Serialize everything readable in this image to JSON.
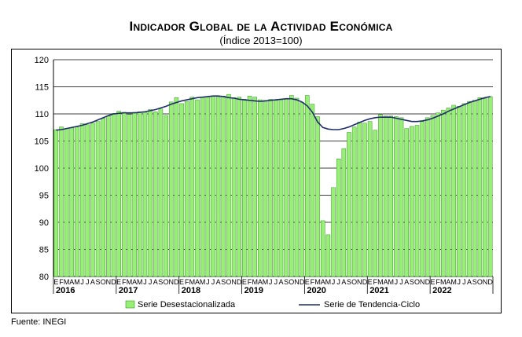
{
  "title": "Indicador Global de la Actividad Económica",
  "subtitle": "(Índice 2013=100)",
  "source": "Fuente: INEGI",
  "colors": {
    "bar_fill": "#99ee77",
    "bar_stroke": "#339922",
    "trend": "#1f2d6b",
    "grid": "#000000"
  },
  "chart_data": {
    "type": "bar",
    "ylim": [
      80,
      120
    ],
    "yticks": [
      80,
      85,
      90,
      95,
      100,
      105,
      110,
      115,
      120
    ],
    "month_letters": [
      "E",
      "F",
      "M",
      "A",
      "M",
      "J",
      "J",
      "A",
      "S",
      "O",
      "N",
      "D"
    ],
    "years": [
      "2016",
      "2017",
      "2018",
      "2019",
      "2020",
      "2021",
      "2022"
    ],
    "legend_placement": "bottom",
    "grid": true,
    "series": [
      {
        "name": "Serie Desestacionalizada",
        "type": "bar",
        "values": [
          107.1,
          107.6,
          107.3,
          107.4,
          107.6,
          108.2,
          108.0,
          108.3,
          108.6,
          109.2,
          109.6,
          110.1,
          110.5,
          110.3,
          109.9,
          110.3,
          110.4,
          110.3,
          110.8,
          110.4,
          110.9,
          109.7,
          112.2,
          113.0,
          111.9,
          112.3,
          113.1,
          112.6,
          113.0,
          113.2,
          113.3,
          113.1,
          113.3,
          113.6,
          113.0,
          113.1,
          112.7,
          113.3,
          113.1,
          112.6,
          112.5,
          112.7,
          112.5,
          112.6,
          112.7,
          113.4,
          112.9,
          112.1,
          113.4,
          111.8,
          109.5,
          90.3,
          87.7,
          96.4,
          101.7,
          103.6,
          106.6,
          107.6,
          108.5,
          108.3,
          108.6,
          107.0,
          109.9,
          109.6,
          109.6,
          109.5,
          109.3,
          107.3,
          107.7,
          107.9,
          108.6,
          109.3,
          109.7,
          110.2,
          110.7,
          111.1,
          111.6,
          111.4,
          111.9,
          112.3,
          112.5,
          113.0,
          112.8,
          113.2
        ]
      },
      {
        "name": "Serie de Tendencia-Ciclo",
        "type": "line",
        "values": [
          107.0,
          107.1,
          107.3,
          107.5,
          107.7,
          107.9,
          108.2,
          108.5,
          108.9,
          109.3,
          109.7,
          110.0,
          110.1,
          110.2,
          110.2,
          110.2,
          110.3,
          110.4,
          110.6,
          110.8,
          111.1,
          111.4,
          111.8,
          112.1,
          112.4,
          112.6,
          112.8,
          113.0,
          113.1,
          113.2,
          113.3,
          113.3,
          113.2,
          113.0,
          112.9,
          112.7,
          112.6,
          112.5,
          112.4,
          112.3,
          112.4,
          112.5,
          112.6,
          112.7,
          112.8,
          112.8,
          112.6,
          112.2,
          111.5,
          110.3,
          108.5,
          107.5,
          107.2,
          107.1,
          107.1,
          107.3,
          107.6,
          108.0,
          108.4,
          108.8,
          109.1,
          109.3,
          109.4,
          109.4,
          109.4,
          109.2,
          109.0,
          108.8,
          108.6,
          108.6,
          108.7,
          108.9,
          109.2,
          109.6,
          110.0,
          110.5,
          110.9,
          111.3,
          111.7,
          112.1,
          112.4,
          112.7,
          113.0,
          113.2
        ]
      }
    ]
  }
}
